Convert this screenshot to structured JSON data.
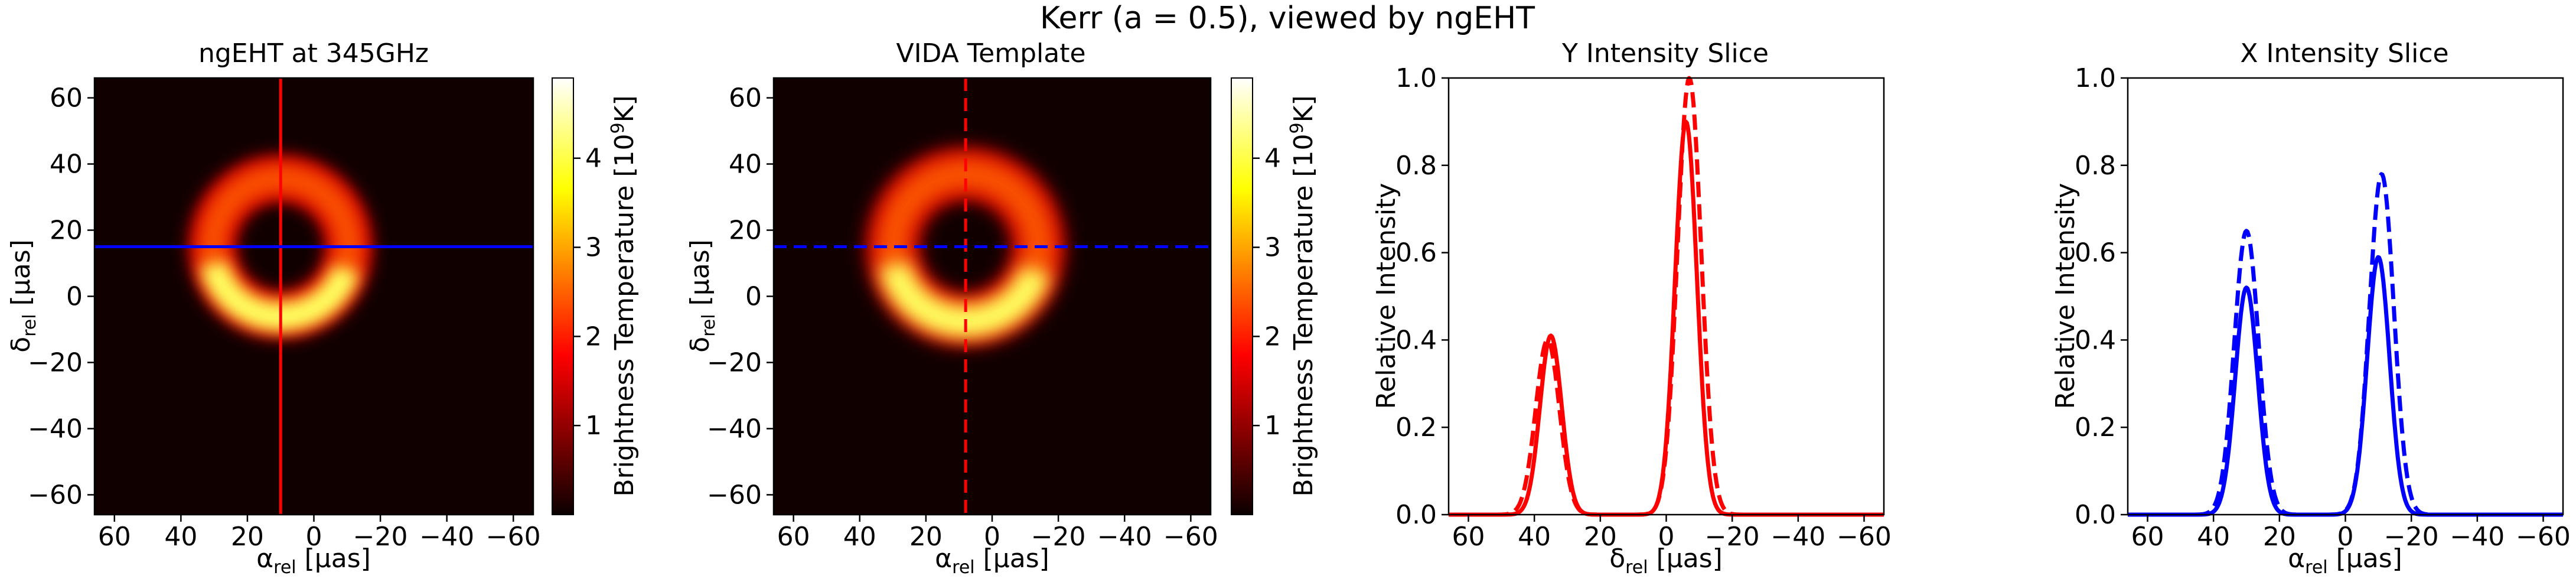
{
  "suptitle": "Kerr (a = 0.5), viewed by ngEHT",
  "colors": {
    "red": "#ff0000",
    "blue": "#0000ff",
    "bg": "#110000"
  },
  "chart_data": [
    {
      "type": "heatmap",
      "title": "ngEHT at 345GHz",
      "xlabel": "αrel [µas]",
      "ylabel": "δrel [µas]",
      "xlim": [
        66,
        -66
      ],
      "ylim": [
        -66,
        66
      ],
      "xticks": [
        "60",
        "40",
        "20",
        "0",
        "−20",
        "−40",
        "−60"
      ],
      "yticks": [
        "60",
        "40",
        "20",
        "0",
        "−20",
        "−40",
        "−60"
      ],
      "colorbar": {
        "label": "Brightness Temperature [10⁹K]",
        "range": [
          0,
          4.9
        ],
        "ticks": [
          "1",
          "2",
          "3",
          "4"
        ],
        "colormap": "hot"
      },
      "ring": {
        "center_alpha": 10,
        "center_delta": 15,
        "radius": 20.5,
        "width": 4.5,
        "peak_delta": -5
      },
      "cut_x": 10,
      "cut_y": 15,
      "cut_style": "solid"
    },
    {
      "type": "heatmap",
      "title": "VIDA Template",
      "xlabel": "αrel [µas]",
      "ylabel": "δrel [µas]",
      "xlim": [
        66,
        -66
      ],
      "ylim": [
        -66,
        66
      ],
      "xticks": [
        "60",
        "40",
        "20",
        "0",
        "−20",
        "−40",
        "−60"
      ],
      "yticks": [
        "60",
        "40",
        "20",
        "0",
        "−20",
        "−40",
        "−60"
      ],
      "colorbar": {
        "label": "Brightness Temperature [10⁹K]",
        "range": [
          0,
          4.9
        ],
        "ticks": [
          "1",
          "2",
          "3",
          "4"
        ],
        "colormap": "hot"
      },
      "ring": {
        "center_alpha": 8,
        "center_delta": 15,
        "radius": 22,
        "width": 5,
        "peak_delta": -5
      },
      "cut_x": 8,
      "cut_y": 15,
      "cut_style": "dashed"
    },
    {
      "type": "line",
      "title": "Y Intensity Slice",
      "xlabel": "δrel [µas]",
      "ylabel": "Relative Intensity",
      "xlim": [
        66,
        -66
      ],
      "ylim": [
        0,
        1.0
      ],
      "xticks": [
        "60",
        "40",
        "20",
        "0",
        "−20",
        "−40",
        "−60"
      ],
      "yticks": [
        "0.0",
        "0.2",
        "0.4",
        "0.6",
        "0.8",
        "1.0"
      ],
      "color": "#ff0000",
      "series": [
        {
          "style": "solid",
          "peaks": [
            {
              "x": 35,
              "amp": 0.41,
              "sigma": 3.3
            },
            {
              "x": -6,
              "amp": 0.9,
              "sigma": 3.3
            }
          ]
        },
        {
          "style": "dashed",
          "peaks": [
            {
              "x": 36,
              "amp": 0.4,
              "sigma": 3.6
            },
            {
              "x": -7,
              "amp": 1.0,
              "sigma": 3.6
            }
          ]
        }
      ]
    },
    {
      "type": "line",
      "title": "X Intensity Slice",
      "xlabel": "αrel [µas]",
      "ylabel": "Relative Intensity",
      "xlim": [
        66,
        -66
      ],
      "ylim": [
        0,
        1.0
      ],
      "xticks": [
        "60",
        "40",
        "20",
        "0",
        "−20",
        "−40",
        "−60"
      ],
      "yticks": [
        "0.0",
        "0.2",
        "0.4",
        "0.6",
        "0.8",
        "1.0"
      ],
      "color": "#0000ff",
      "series": [
        {
          "style": "solid",
          "peaks": [
            {
              "x": 30,
              "amp": 0.52,
              "sigma": 3.4
            },
            {
              "x": -10,
              "amp": 0.59,
              "sigma": 3.4
            }
          ]
        },
        {
          "style": "dashed",
          "peaks": [
            {
              "x": 30,
              "amp": 0.65,
              "sigma": 3.7
            },
            {
              "x": -11,
              "amp": 0.78,
              "sigma": 3.7
            }
          ]
        }
      ]
    }
  ]
}
